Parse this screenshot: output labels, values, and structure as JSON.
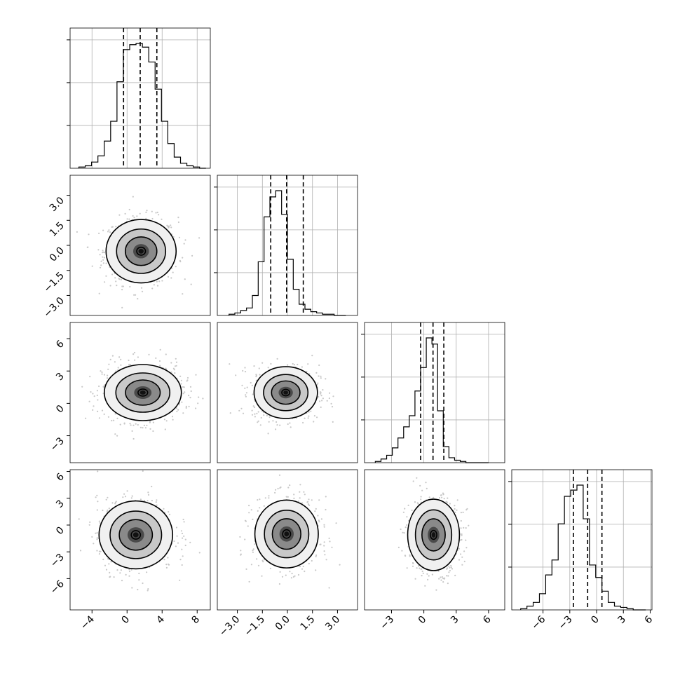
{
  "chart_data": {
    "type": "corner",
    "n_params": 4,
    "params": [
      {
        "index": 0,
        "range": [
          -6.5,
          9.5
        ],
        "ticks": [
          "−4",
          "0",
          "4",
          "8"
        ],
        "tick_values": [
          -4,
          0,
          4,
          8
        ],
        "quantiles": [
          -0.4,
          1.5,
          3.4
        ]
      },
      {
        "index": 1,
        "range": [
          -4.2,
          4.2
        ],
        "ticks": [
          "−3.0",
          "−1.5",
          "0.0",
          "1.5",
          "3.0"
        ],
        "tick_values": [
          -3.0,
          -1.5,
          0.0,
          1.5,
          3.0
        ],
        "quantiles": [
          -1.0,
          -0.05,
          0.95
        ]
      },
      {
        "index": 2,
        "range": [
          -5.5,
          7.5
        ],
        "ticks": [
          "−3",
          "0",
          "3",
          "6"
        ],
        "tick_values": [
          -3,
          0,
          3,
          6
        ],
        "quantiles": [
          -0.3,
          0.85,
          1.85
        ]
      },
      {
        "index": 3,
        "range": [
          -9.5,
          6.2
        ],
        "ticks": [
          "−6",
          "−3",
          "0",
          "3",
          "6"
        ],
        "tick_values": [
          -6,
          -3,
          0,
          3,
          6
        ],
        "quantiles": [
          -2.6,
          -1.0,
          0.6
        ]
      }
    ],
    "histograms": [
      {
        "param": 0,
        "bins": [
          -5.5,
          9.0
        ],
        "counts": [
          1,
          2,
          5,
          10,
          22,
          38,
          70,
          96,
          100,
          101,
          98,
          86,
          64,
          38,
          20,
          9,
          4,
          2,
          1,
          0
        ]
      },
      {
        "param": 1,
        "bins": [
          -3.5,
          3.5
        ],
        "counts": [
          1,
          2,
          4,
          6,
          16,
          43,
          79,
          95,
          100,
          81,
          45,
          21,
          9,
          5,
          3,
          2,
          1,
          1,
          0,
          0
        ]
      },
      {
        "param": 2,
        "bins": [
          -4.5,
          6.0
        ],
        "counts": [
          1,
          3,
          6,
          12,
          20,
          29,
          38,
          58,
          77,
          101,
          96,
          42,
          13,
          4,
          2,
          1,
          0,
          0,
          0,
          0
        ]
      },
      {
        "param": 3,
        "bins": [
          -8.5,
          5.5
        ],
        "counts": [
          1,
          3,
          6,
          13,
          28,
          40,
          69,
          91,
          96,
          100,
          73,
          36,
          26,
          15,
          6,
          3,
          2,
          1,
          0,
          0
        ]
      }
    ],
    "pairs": [
      {
        "x": 0,
        "y": 1,
        "center": [
          1.6,
          -0.35
        ],
        "spread": [
          2.0,
          0.95
        ]
      },
      {
        "x": 0,
        "y": 2,
        "center": [
          1.8,
          1.0
        ],
        "spread": [
          2.2,
          1.3
        ]
      },
      {
        "x": 1,
        "y": 2,
        "center": [
          -0.1,
          1.0
        ],
        "spread": [
          0.95,
          1.2
        ]
      },
      {
        "x": 0,
        "y": 3,
        "center": [
          1.0,
          -1.1
        ],
        "spread": [
          2.1,
          1.9
        ]
      },
      {
        "x": 1,
        "y": 3,
        "center": [
          -0.05,
          -1.0
        ],
        "spread": [
          0.95,
          1.9
        ]
      },
      {
        "x": 2,
        "y": 3,
        "center": [
          0.9,
          -1.1
        ],
        "spread": [
          1.2,
          2.0
        ]
      }
    ],
    "grid": true,
    "line_color": "#000000",
    "scatter_color": "#c8c8c8"
  }
}
